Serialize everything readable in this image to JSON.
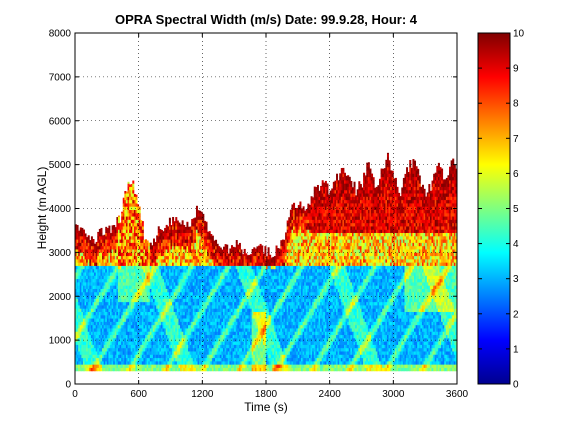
{
  "chart_data": {
    "type": "heatmap",
    "title": "OPRA Spectral Width (m/s)  Date: 99.9.28, Hour: 4",
    "xlabel": "Time (s)",
    "ylabel": "Height (m AGL)",
    "xlim": [
      0,
      3600
    ],
    "ylim": [
      0,
      8000
    ],
    "xticks": [
      0,
      600,
      1200,
      1800,
      2400,
      3000,
      3600
    ],
    "yticks": [
      0,
      1000,
      2000,
      3000,
      4000,
      5000,
      6000,
      7000,
      8000
    ],
    "grid": true,
    "grid_style": "dotted",
    "colorbar": {
      "min": 0,
      "max": 10,
      "ticks": [
        0,
        1,
        2,
        3,
        4,
        5,
        6,
        7,
        8,
        9,
        10
      ],
      "colormap": "jet",
      "placement": "right"
    },
    "data_base_height_m": 300,
    "echo_top_height_m": [
      [
        0,
        3600
      ],
      [
        60,
        3500
      ],
      [
        120,
        3300
      ],
      [
        180,
        3200
      ],
      [
        240,
        3500
      ],
      [
        300,
        3450
      ],
      [
        360,
        3650
      ],
      [
        420,
        3800
      ],
      [
        480,
        4500
      ],
      [
        540,
        4600
      ],
      [
        600,
        4000
      ],
      [
        660,
        3200
      ],
      [
        720,
        3100
      ],
      [
        780,
        3500
      ],
      [
        840,
        3600
      ],
      [
        900,
        3700
      ],
      [
        960,
        3800
      ],
      [
        1020,
        3600
      ],
      [
        1080,
        3700
      ],
      [
        1140,
        3950
      ],
      [
        1200,
        3850
      ],
      [
        1260,
        3500
      ],
      [
        1320,
        3350
      ],
      [
        1380,
        3100
      ],
      [
        1440,
        3050
      ],
      [
        1500,
        3200
      ],
      [
        1560,
        3100
      ],
      [
        1620,
        3000
      ],
      [
        1680,
        3000
      ],
      [
        1740,
        3100
      ],
      [
        1800,
        3000
      ],
      [
        1860,
        3000
      ],
      [
        1920,
        3100
      ],
      [
        1980,
        3500
      ],
      [
        2040,
        4000
      ],
      [
        2100,
        4100
      ],
      [
        2160,
        3900
      ],
      [
        2220,
        4300
      ],
      [
        2280,
        4500
      ],
      [
        2340,
        4600
      ],
      [
        2400,
        4300
      ],
      [
        2460,
        4700
      ],
      [
        2520,
        4900
      ],
      [
        2580,
        4800
      ],
      [
        2640,
        4400
      ],
      [
        2700,
        4600
      ],
      [
        2760,
        5100
      ],
      [
        2820,
        4500
      ],
      [
        2880,
        4800
      ],
      [
        2940,
        5200
      ],
      [
        3000,
        4700
      ],
      [
        3060,
        4400
      ],
      [
        3120,
        4900
      ],
      [
        3180,
        5100
      ],
      [
        3240,
        4700
      ],
      [
        3300,
        4300
      ],
      [
        3360,
        4600
      ],
      [
        3420,
        5000
      ],
      [
        3480,
        4600
      ],
      [
        3540,
        5100
      ],
      [
        3600,
        5000
      ]
    ],
    "typical_values": {
      "lower_layer_300_2700m": "2.5-4",
      "streaks": "4.5-6",
      "upper_fringe": "7-10"
    }
  }
}
